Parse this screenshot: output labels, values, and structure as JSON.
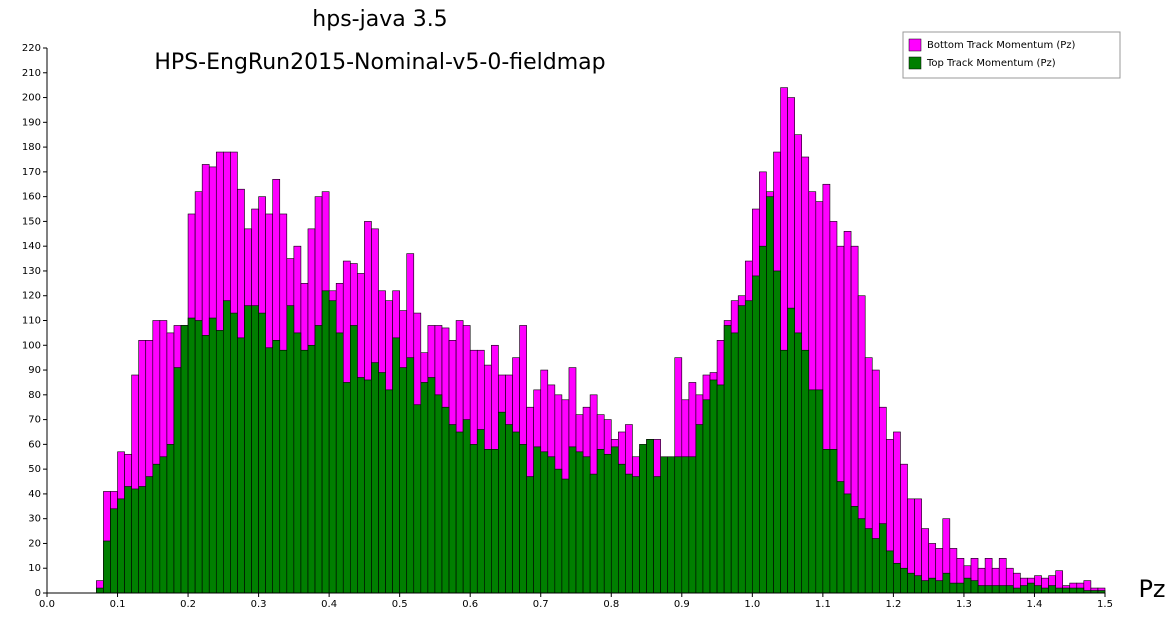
{
  "chart_data": {
    "type": "histogram",
    "title": [
      "hps-java 3.5",
      "HPS-EngRun2015-Nominal-v5-0-fieldmap"
    ],
    "x_label": "Pz",
    "bins": [
      0.07,
      0.08,
      0.09,
      0.1,
      0.11,
      0.12,
      0.13,
      0.14,
      0.15,
      0.16,
      0.17,
      0.18,
      0.19,
      0.2,
      0.21,
      0.22,
      0.23,
      0.24,
      0.25,
      0.26,
      0.27,
      0.28,
      0.29,
      0.3,
      0.31,
      0.32,
      0.33,
      0.34,
      0.35,
      0.36,
      0.37,
      0.38,
      0.39,
      0.4,
      0.41,
      0.42,
      0.43,
      0.44,
      0.45,
      0.46,
      0.47,
      0.48,
      0.49,
      0.5,
      0.51,
      0.52,
      0.53,
      0.54,
      0.55,
      0.56,
      0.57,
      0.58,
      0.59,
      0.6,
      0.61,
      0.62,
      0.63,
      0.64,
      0.65,
      0.66,
      0.67,
      0.68,
      0.69,
      0.7,
      0.71,
      0.72,
      0.73,
      0.74,
      0.75,
      0.76,
      0.77,
      0.78,
      0.79,
      0.8,
      0.81,
      0.82,
      0.83,
      0.84,
      0.85,
      0.86,
      0.87,
      0.88,
      0.89,
      0.9,
      0.91,
      0.92,
      0.93,
      0.94,
      0.95,
      0.96,
      0.97,
      0.98,
      0.99,
      1.0,
      1.01,
      1.02,
      1.03,
      1.04,
      1.05,
      1.06,
      1.07,
      1.08,
      1.09,
      1.1,
      1.11,
      1.12,
      1.13,
      1.14,
      1.15,
      1.16,
      1.17,
      1.18,
      1.19,
      1.2,
      1.21,
      1.22,
      1.23,
      1.24,
      1.25,
      1.26,
      1.27,
      1.28,
      1.29,
      1.3,
      1.31,
      1.32,
      1.33,
      1.34,
      1.35,
      1.36,
      1.37,
      1.38,
      1.39,
      1.4,
      1.41,
      1.42,
      1.43,
      1.44,
      1.45,
      1.46,
      1.47,
      1.48,
      1.49,
      1.5
    ],
    "series": [
      {
        "name": "Bottom Track Momentum (Pz)",
        "color": "#ff00ff",
        "values": [
          5,
          41,
          41,
          57,
          56,
          88,
          102,
          102,
          110,
          110,
          105,
          108,
          108,
          153,
          162,
          173,
          172,
          178,
          178,
          178,
          163,
          147,
          155,
          160,
          153,
          167,
          153,
          135,
          140,
          125,
          147,
          160,
          162,
          122,
          125,
          134,
          133,
          129,
          150,
          147,
          122,
          118,
          122,
          114,
          137,
          113,
          97,
          108,
          108,
          107,
          102,
          110,
          108,
          98,
          98,
          92,
          100,
          88,
          88,
          95,
          108,
          75,
          82,
          90,
          84,
          80,
          78,
          91,
          72,
          75,
          80,
          72,
          70,
          62,
          65,
          68,
          55,
          58,
          62,
          62,
          45,
          42,
          95,
          78,
          85,
          80,
          88,
          89,
          102,
          110,
          118,
          120,
          134,
          155,
          170,
          162,
          178,
          204,
          200,
          185,
          176,
          162,
          158,
          165,
          150,
          140,
          146,
          140,
          120,
          95,
          90,
          75,
          62,
          65,
          52,
          38,
          38,
          26,
          20,
          18,
          30,
          18,
          14,
          11,
          14,
          10,
          14,
          10,
          14,
          10,
          8,
          6,
          6,
          7,
          6,
          7,
          9,
          3,
          4,
          4,
          5,
          2,
          2
        ]
      },
      {
        "name": "Top Track Momentum (Pz)",
        "color": "#007f00",
        "values": [
          2,
          21,
          34,
          38,
          43,
          42,
          43,
          47,
          52,
          55,
          60,
          91,
          108,
          111,
          110,
          104,
          111,
          106,
          118,
          113,
          103,
          116,
          116,
          113,
          99,
          102,
          98,
          116,
          105,
          98,
          100,
          108,
          122,
          118,
          105,
          85,
          108,
          87,
          86,
          93,
          89,
          82,
          103,
          91,
          95,
          76,
          85,
          87,
          80,
          75,
          68,
          65,
          70,
          60,
          66,
          58,
          58,
          73,
          68,
          65,
          60,
          47,
          59,
          57,
          55,
          50,
          46,
          59,
          57,
          55,
          48,
          58,
          56,
          59,
          52,
          48,
          47,
          60,
          62,
          47,
          55,
          55,
          55,
          55,
          55,
          68,
          78,
          86,
          84,
          108,
          105,
          116,
          118,
          128,
          140,
          160,
          130,
          98,
          115,
          105,
          98,
          82,
          82,
          58,
          58,
          45,
          40,
          35,
          30,
          26,
          22,
          28,
          17,
          12,
          10,
          8,
          7,
          5,
          6,
          5,
          8,
          4,
          4,
          6,
          5,
          3,
          3,
          3,
          3,
          3,
          2,
          3,
          4,
          3,
          2,
          3,
          2,
          2,
          2,
          2,
          1,
          1,
          1
        ]
      }
    ],
    "xlim": [
      0,
      1.5
    ],
    "xticks": [
      {
        "value": 0,
        "label": "0.0"
      },
      0.1,
      0.2,
      0.3,
      0.4,
      0.5,
      0.6,
      0.7,
      0.8,
      0.9,
      {
        "value": 1,
        "label": "1.0"
      },
      1.1,
      1.2,
      1.3,
      1.4,
      1.5
    ],
    "ylim": [
      0,
      220
    ],
    "yticks": [
      0,
      10,
      20,
      30,
      40,
      50,
      60,
      70,
      80,
      90,
      100,
      110,
      120,
      130,
      140,
      150,
      160,
      170,
      180,
      190,
      200,
      210,
      220
    ],
    "legend": "top-right"
  }
}
